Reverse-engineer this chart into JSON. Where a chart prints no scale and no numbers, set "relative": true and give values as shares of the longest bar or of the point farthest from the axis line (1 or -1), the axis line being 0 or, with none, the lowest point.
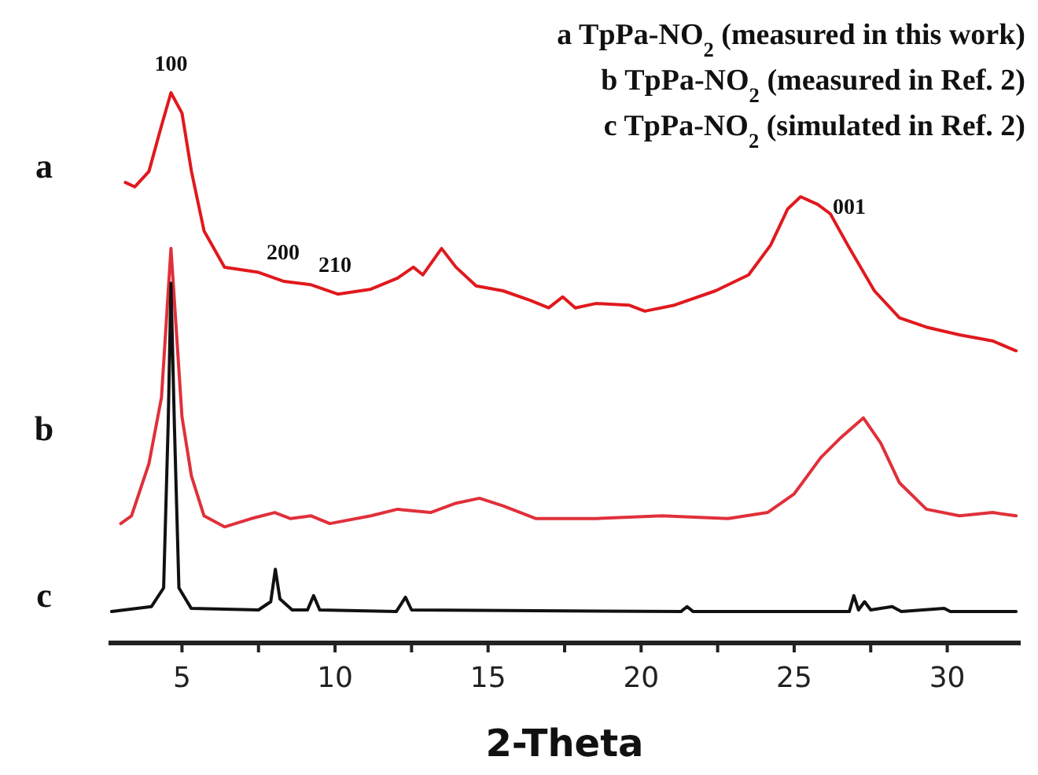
{
  "chart_data": {
    "type": "line",
    "relative": true,
    "xlabel": "2-Theta",
    "xlim": [
      2.6,
      32.4
    ],
    "xticks": [
      5,
      {
        "value": 7.5,
        "label": null
      },
      10,
      {
        "value": 12.5,
        "label": null
      },
      15,
      {
        "value": 17.5,
        "label": null
      },
      20,
      {
        "value": 22.5,
        "label": null
      },
      25,
      {
        "value": 27.5,
        "label": null
      },
      30
    ],
    "line_style": "solid",
    "marker": "none",
    "grid": false,
    "annotations": [
      "a TpPa-NO$_{2}$ (measured in this work)",
      "b TpPa-NO$_{2}$ (measured in Ref. 2)",
      "c TpPa-NO$_{2}$ (simulated in Ref. 2)",
      {
        "text": "100",
        "x": 4.64,
        "y": 1.0
      },
      {
        "text": "200",
        "x": 8.3,
        "y": 0.657
      },
      {
        "text": "210",
        "x": 10.0,
        "y": 0.634
      },
      {
        "text": "001",
        "x": 26.8,
        "y": 0.74
      }
    ],
    "series": [
      {
        "name": "a",
        "color": "#e0191e",
        "x": [
          3.15,
          3.46,
          3.92,
          4.33,
          4.64,
          5.0,
          5.31,
          5.72,
          6.39,
          7.47,
          8.34,
          9.22,
          10.09,
          11.17,
          12.04,
          12.56,
          12.87,
          13.48,
          13.95,
          14.61,
          15.49,
          16.36,
          16.98,
          17.44,
          17.85,
          18.52,
          19.6,
          20.12,
          21.09,
          22.43,
          23.51,
          24.23,
          24.79,
          25.21,
          25.77,
          26.18,
          26.75,
          27.62,
          28.44,
          29.32,
          30.4,
          31.48,
          32.25
        ],
        "values": [
          0.837,
          0.829,
          0.857,
          0.94,
          1.0,
          0.963,
          0.857,
          0.749,
          0.683,
          0.674,
          0.657,
          0.651,
          0.634,
          0.643,
          0.663,
          0.683,
          0.669,
          0.717,
          0.683,
          0.649,
          0.64,
          0.623,
          0.609,
          0.629,
          0.609,
          0.617,
          0.614,
          0.603,
          0.614,
          0.64,
          0.669,
          0.723,
          0.789,
          0.811,
          0.797,
          0.78,
          0.723,
          0.64,
          0.591,
          0.574,
          0.56,
          0.549,
          0.531
        ]
      },
      {
        "name": "b",
        "color": "#e0303a",
        "x": [
          3.0,
          3.35,
          3.92,
          4.33,
          4.64,
          5.0,
          5.31,
          5.72,
          6.39,
          7.26,
          8.03,
          8.55,
          9.22,
          9.83,
          11.17,
          12.04,
          13.12,
          13.95,
          14.72,
          15.49,
          16.57,
          18.52,
          20.68,
          22.84,
          24.13,
          25.0,
          25.87,
          26.54,
          27.26,
          27.83,
          28.44,
          29.32,
          30.4,
          31.48,
          32.25
        ],
        "values": [
          0.217,
          0.231,
          0.326,
          0.446,
          0.717,
          0.411,
          0.303,
          0.231,
          0.211,
          0.226,
          0.237,
          0.226,
          0.231,
          0.217,
          0.231,
          0.243,
          0.237,
          0.254,
          0.263,
          0.249,
          0.226,
          0.226,
          0.231,
          0.226,
          0.237,
          0.271,
          0.337,
          0.374,
          0.409,
          0.363,
          0.291,
          0.243,
          0.231,
          0.237,
          0.231
        ]
      },
      {
        "name": "c",
        "color": "#111111",
        "x": [
          2.7,
          4.0,
          4.4,
          4.55,
          4.64,
          4.75,
          4.9,
          5.3,
          7.5,
          7.9,
          8.05,
          8.2,
          8.6,
          9.1,
          9.3,
          9.5,
          12.0,
          12.3,
          12.5,
          21.3,
          21.5,
          21.7,
          26.8,
          26.95,
          27.1,
          27.3,
          27.5,
          28.2,
          28.5,
          29.9,
          30.1,
          32.25
        ],
        "values": [
          0.057,
          0.066,
          0.1,
          0.4,
          0.654,
          0.4,
          0.1,
          0.063,
          0.06,
          0.075,
          0.134,
          0.08,
          0.06,
          0.06,
          0.086,
          0.06,
          0.057,
          0.083,
          0.06,
          0.057,
          0.066,
          0.057,
          0.057,
          0.086,
          0.06,
          0.075,
          0.06,
          0.066,
          0.057,
          0.063,
          0.057,
          0.057
        ]
      }
    ]
  }
}
